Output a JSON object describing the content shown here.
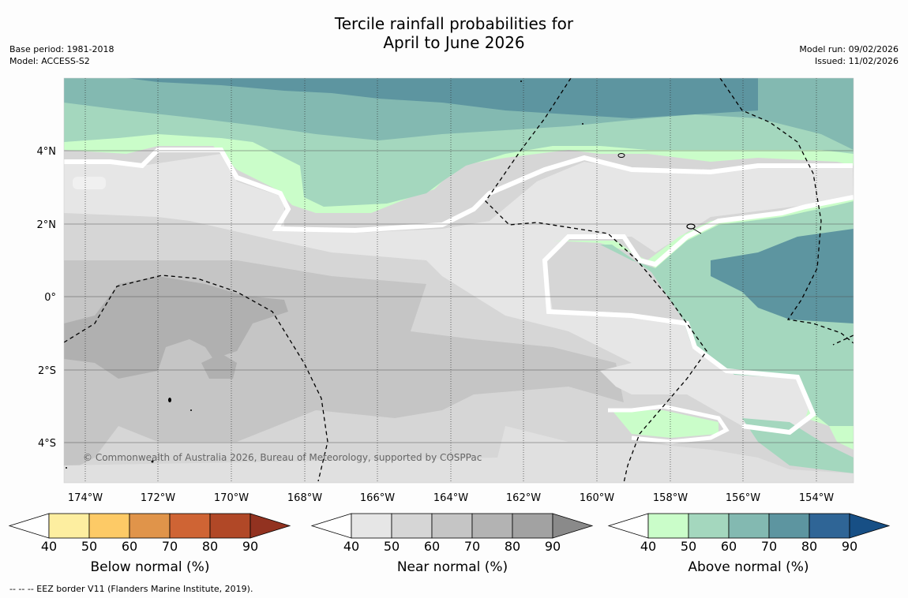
{
  "title": {
    "line1": "Tercile rainfall probabilities for",
    "line2": "April to June 2026"
  },
  "meta_left": {
    "base_period": "Base period: 1981-2018",
    "model": "Model: ACCESS-S2"
  },
  "meta_right": {
    "model_run": "Model run: 09/02/2026",
    "issued": "Issued: 11/02/2026"
  },
  "map": {
    "copyright": "© Commonwealth of Australia 2026, Bureau of Meteorology, supported by COSPPac",
    "lon_labels": [
      "174°W",
      "172°W",
      "170°W",
      "168°W",
      "166°W",
      "164°W",
      "162°W",
      "160°W",
      "158°W",
      "156°W",
      "154°W"
    ],
    "lat_labels": [
      "4°N",
      "2°N",
      "0°",
      "2°S",
      "4°S"
    ]
  },
  "colorbars": [
    {
      "label": "Below normal (%)",
      "ticks": [
        "40",
        "50",
        "60",
        "70",
        "80",
        "90"
      ],
      "colors": [
        "#fdeea0",
        "#fdca66",
        "#e0944a",
        "#cf6434",
        "#b14827",
        "#923220"
      ]
    },
    {
      "label": "Near normal (%)",
      "ticks": [
        "40",
        "50",
        "60",
        "70",
        "80",
        "90"
      ],
      "colors": [
        "#e6e6e6",
        "#d6d6d6",
        "#c5c5c5",
        "#b3b3b3",
        "#a2a2a2",
        "#8a8a8a"
      ]
    },
    {
      "label": "Above normal (%)",
      "ticks": [
        "40",
        "50",
        "60",
        "70",
        "80",
        "90"
      ],
      "colors": [
        "#cafdc9",
        "#a4d7be",
        "#83b9b1",
        "#5d95a0",
        "#2f6596",
        "#174f85"
      ]
    }
  ],
  "footer": {
    "legend": "--  --  -- EEZ border V11 (Flanders Marine Institute, 2019)."
  }
}
